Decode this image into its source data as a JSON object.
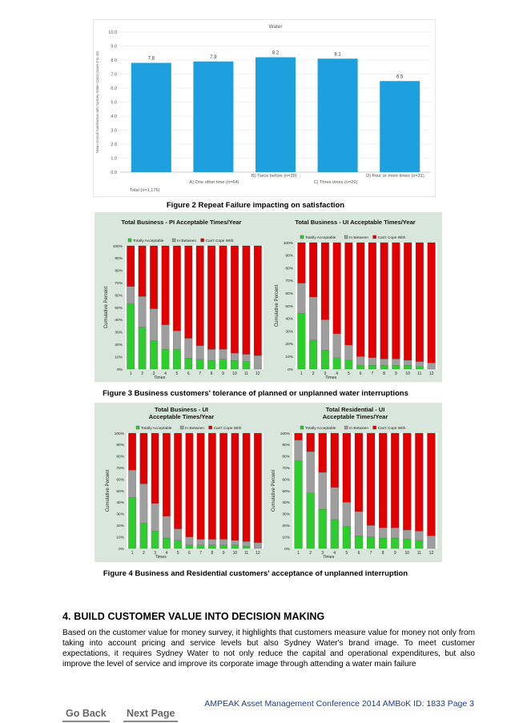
{
  "figures": [
    {
      "caption": "Figure 2 Repeat Failure impacting on satisfaction",
      "charts": [
        {
          "type": "bar",
          "title": "Water",
          "ylabel": "Mean Overall Satisfaction with Sydney Water (Q44) (score 0 to 10)",
          "ylim": [
            0,
            10
          ],
          "yticks": [
            "0.0",
            "1.0",
            "2.0",
            "3.0",
            "4.0",
            "5.0",
            "6.0",
            "7.0",
            "8.0",
            "9.0",
            "10.0"
          ],
          "categories": [
            "Total (n=1,176)",
            "A) One other time (n=64)",
            "B) Twice before (n=39)",
            "C) Three times (n=26)",
            "D) Four or more times (n=31)"
          ],
          "values": [
            7.8,
            7.9,
            8.2,
            8.1,
            6.5
          ],
          "value_labels": [
            "7.8",
            "7.9",
            "8.2",
            "8.1",
            "6.5"
          ],
          "bar_color": "#1ea0de"
        }
      ]
    },
    {
      "caption": "Figure 3 Business customers' tolerance of planned or unplanned water interruptions",
      "charts": [
        {
          "type": "bar",
          "stacked": true,
          "title": "Total Business - PI Acceptable Times/Year",
          "xlabel": "Times",
          "ylabel": "Cumulative Percent",
          "categories": [
            "1",
            "2",
            "3",
            "4",
            "5",
            "6",
            "7",
            "8",
            "9",
            "10",
            "11",
            "12"
          ],
          "yticks": [
            "0%",
            "10%",
            "20%",
            "30%",
            "40%",
            "50%",
            "60%",
            "70%",
            "80%",
            "90%",
            "100%"
          ],
          "series": [
            {
              "name": "Totally Acceptable",
              "color": "#2ecc2e",
              "values": [
                53,
                34,
                23,
                16,
                16,
                9,
                8,
                7,
                8,
                7,
                6,
                0
              ]
            },
            {
              "name": "In Between",
              "color": "#9e9e9e",
              "values": [
                14,
                25,
                26,
                20,
                15,
                16,
                11,
                9,
                8,
                6,
                6,
                11
              ]
            },
            {
              "name": "Can't Cope With",
              "color": "#e00000",
              "values": [
                33,
                41,
                51,
                64,
                69,
                75,
                81,
                84,
                84,
                87,
                88,
                89
              ]
            }
          ]
        },
        {
          "type": "bar",
          "stacked": true,
          "title": "Total Business - UI Acceptable Times/Year",
          "xlabel": "Times",
          "ylabel": "Cumulative Percent",
          "categories": [
            "1",
            "2",
            "3",
            "4",
            "5",
            "6",
            "7",
            "8",
            "9",
            "10",
            "11",
            "12"
          ],
          "yticks": [
            "0%",
            "10%",
            "20%",
            "30%",
            "40%",
            "50%",
            "60%",
            "70%",
            "80%",
            "90%",
            "100%"
          ],
          "series": [
            {
              "name": "Totally Acceptable",
              "color": "#2ecc2e",
              "values": [
                44,
                23,
                15,
                9,
                7,
                3,
                3,
                3,
                3,
                3,
                2,
                0
              ]
            },
            {
              "name": "In Between",
              "color": "#9e9e9e",
              "values": [
                24,
                34,
                24,
                19,
                12,
                7,
                6,
                5,
                5,
                4,
                4,
                5
              ]
            },
            {
              "name": "Can't Cope With",
              "color": "#e00000",
              "values": [
                32,
                43,
                61,
                72,
                81,
                90,
                91,
                92,
                92,
                93,
                94,
                95
              ]
            }
          ]
        }
      ]
    },
    {
      "caption": "Figure 4 Business and Residential customers' acceptance of unplanned interruption",
      "charts": [
        {
          "type": "bar",
          "stacked": true,
          "title": "Total Business - UI",
          "subtitle": "Acceptable Times/Year",
          "xlabel": "Times",
          "ylabel": "Cumulative Percent",
          "categories": [
            "1",
            "2",
            "3",
            "4",
            "5",
            "6",
            "7",
            "8",
            "9",
            "10",
            "11",
            "12"
          ],
          "yticks": [
            "0%",
            "10%",
            "20%",
            "30%",
            "40%",
            "50%",
            "60%",
            "70%",
            "80%",
            "90%",
            "100%"
          ],
          "series": [
            {
              "name": "Totally Acceptable",
              "color": "#2ecc2e",
              "values": [
                44,
                22,
                15,
                9,
                7,
                3,
                3,
                3,
                3,
                3,
                2,
                0
              ]
            },
            {
              "name": "In Between",
              "color": "#9e9e9e",
              "values": [
                24,
                34,
                24,
                19,
                10,
                7,
                5,
                5,
                5,
                4,
                4,
                5
              ]
            },
            {
              "name": "Can't Cope With",
              "color": "#e00000",
              "values": [
                32,
                44,
                61,
                72,
                83,
                90,
                92,
                92,
                92,
                93,
                94,
                95
              ]
            }
          ]
        },
        {
          "type": "bar",
          "stacked": true,
          "title": "Total Residential - UI",
          "subtitle": "Acceptable Times/Year",
          "xlabel": "Times",
          "ylabel": "Cumulative Percent",
          "categories": [
            "1",
            "2",
            "3",
            "4",
            "5",
            "6",
            "7",
            "8",
            "9",
            "10",
            "11",
            "12"
          ],
          "yticks": [
            "0%",
            "10%",
            "20%",
            "30%",
            "40%",
            "50%",
            "60%",
            "70%",
            "80%",
            "90%",
            "100%"
          ],
          "series": [
            {
              "name": "Totally Acceptable",
              "color": "#2ecc2e",
              "values": [
                76,
                48,
                34,
                25,
                19,
                11,
                10,
                9,
                9,
                8,
                7,
                0
              ]
            },
            {
              "name": "In Between",
              "color": "#9e9e9e",
              "values": [
                18,
                36,
                32,
                28,
                21,
                21,
                10,
                9,
                9,
                8,
                8,
                11
              ]
            },
            {
              "name": "Can't Cope With",
              "color": "#e00000",
              "values": [
                6,
                16,
                34,
                47,
                60,
                68,
                80,
                82,
                82,
                84,
                85,
                89
              ]
            }
          ]
        }
      ]
    }
  ],
  "section": {
    "heading": "4.  BUILD CUSTOMER VALUE INTO DECISION MAKING",
    "paragraph": "Based on the customer value for money survey, it highlights that customers measure value for money not only from taking into account pricing and service levels but also Sydney Water's brand image. To meet customer expectations, it requires Sydney Water to not only reduce the capital and operational expenditures, but also improve the level of service and improve its corporate image through attending a water main failure"
  },
  "footer": "AMPEAK Asset Management Conference 2014 AMBoK ID: 1833 Page 3",
  "nav": {
    "back": "Go Back",
    "next": "Next Page"
  }
}
